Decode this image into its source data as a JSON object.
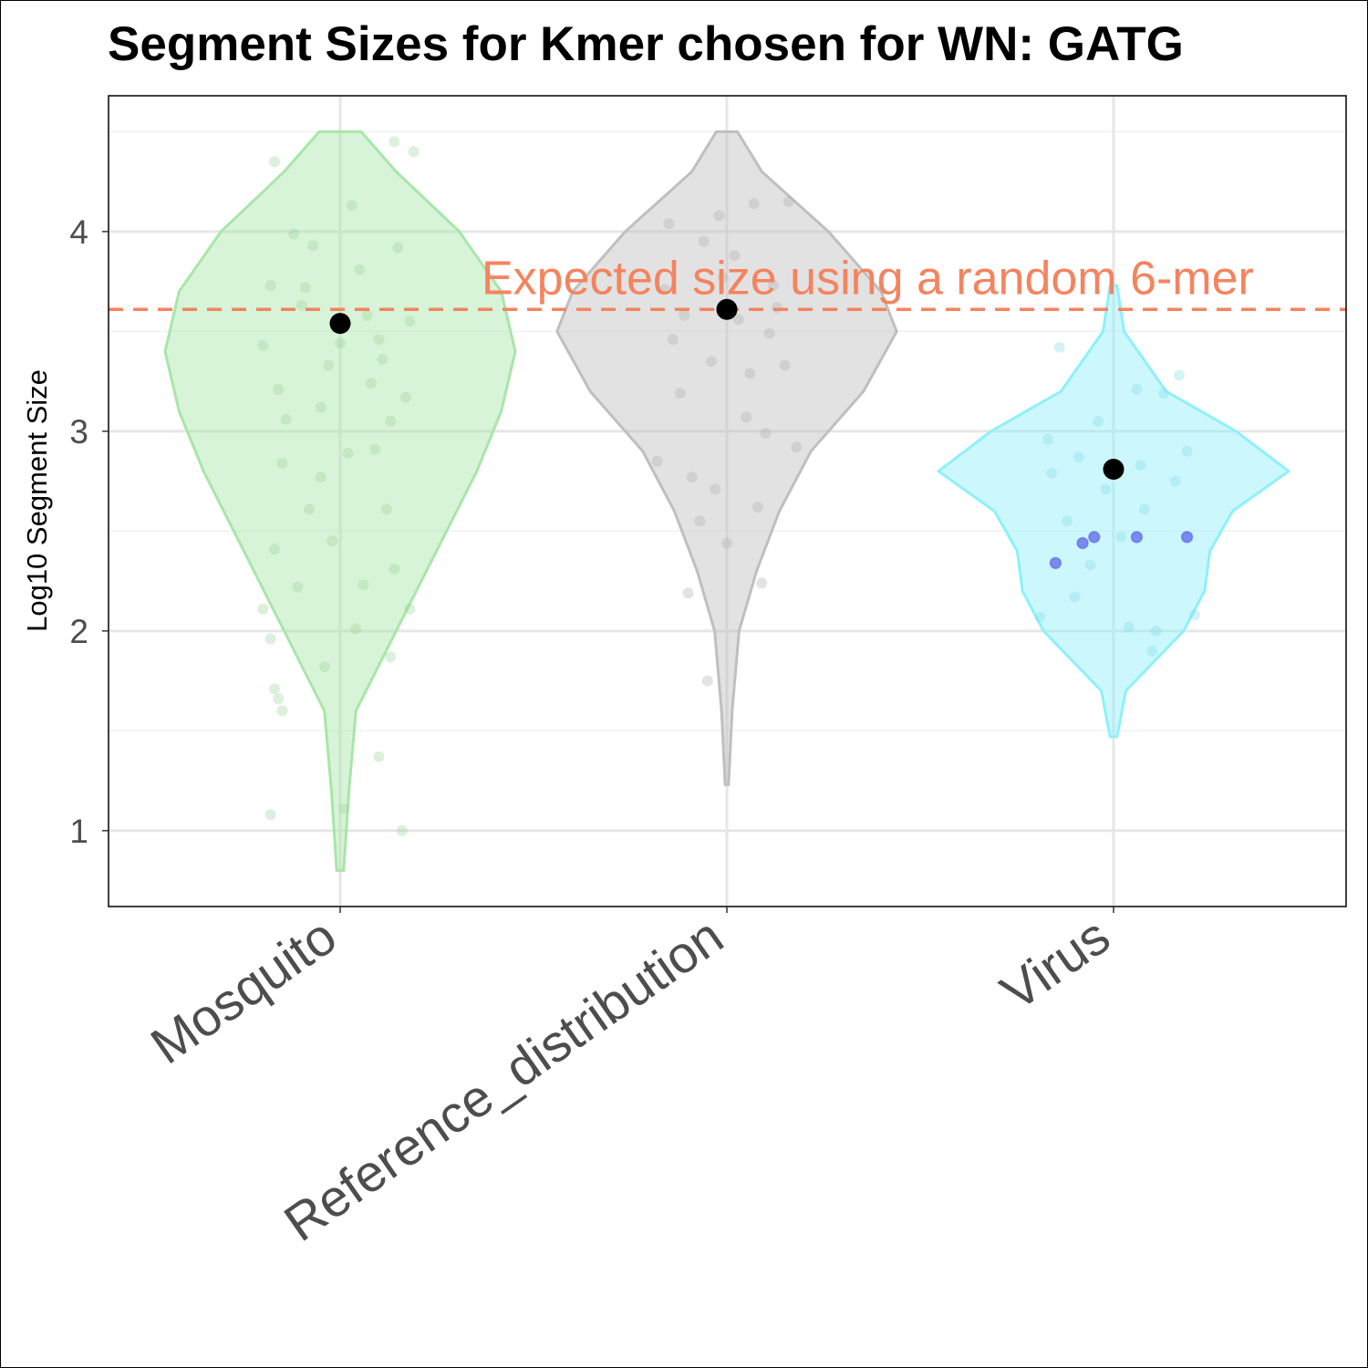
{
  "chart_data": {
    "type": "violin",
    "title": "Segment Sizes for Kmer chosen for WN: GATG",
    "xlabel": "",
    "ylabel": "Log10 Segment Size",
    "ylim": [
      0.62,
      4.68
    ],
    "yticks": [
      1,
      2,
      3,
      4
    ],
    "grid": true,
    "legend": "none",
    "categories": [
      "Mosquito",
      "Reference_distribution",
      "Virus"
    ],
    "reference_line": {
      "value": 3.61,
      "label": "Expected size using a random 6-mer",
      "color": "#f4845f",
      "style": "dashed"
    },
    "colors": {
      "Mosquito": "#a8e6a8",
      "Reference_distribution": "#bfbfbf",
      "Virus": "#8ef0fb",
      "highlight": "#3f3fe8",
      "median": "#000000"
    },
    "series": [
      {
        "category": "Mosquito",
        "median": 3.54,
        "range": [
          0.8,
          4.5
        ],
        "density_profile": [
          [
            0.8,
            0.02
          ],
          [
            1.2,
            0.05
          ],
          [
            1.6,
            0.09
          ],
          [
            2.0,
            0.32
          ],
          [
            2.4,
            0.55
          ],
          [
            2.8,
            0.78
          ],
          [
            3.1,
            0.92
          ],
          [
            3.4,
            1.0
          ],
          [
            3.7,
            0.92
          ],
          [
            4.0,
            0.68
          ],
          [
            4.3,
            0.32
          ],
          [
            4.5,
            0.12
          ]
        ],
        "points": [
          [
            -0.17,
            4.35
          ],
          [
            0.14,
            4.45
          ],
          [
            0.19,
            4.4
          ],
          [
            -0.18,
            1.08
          ],
          [
            0.01,
            1.11
          ],
          [
            0.1,
            1.37
          ],
          [
            0.16,
            1.0
          ],
          [
            -0.15,
            1.6
          ],
          [
            -0.17,
            1.71
          ],
          [
            -0.16,
            1.66
          ],
          [
            -0.18,
            1.96
          ],
          [
            -0.2,
            2.11
          ],
          [
            0.13,
            1.87
          ],
          [
            0.18,
            2.11
          ],
          [
            -0.17,
            2.41
          ],
          [
            -0.04,
            1.82
          ],
          [
            0.06,
            2.23
          ],
          [
            0.14,
            2.31
          ],
          [
            -0.2,
            3.43
          ],
          [
            -0.16,
            3.21
          ],
          [
            0.12,
            2.61
          ],
          [
            -0.05,
            2.77
          ],
          [
            0.09,
            2.91
          ],
          [
            0.17,
            3.17
          ],
          [
            -0.1,
            3.63
          ],
          [
            0.05,
            3.81
          ],
          [
            0.15,
            3.92
          ],
          [
            -0.12,
            3.99
          ],
          [
            0.03,
            4.13
          ],
          [
            -0.14,
            3.06
          ],
          [
            -0.08,
            2.61
          ],
          [
            0.11,
            3.36
          ],
          [
            -0.03,
            3.33
          ],
          [
            0.07,
            3.58
          ],
          [
            -0.18,
            3.73
          ],
          [
            0.1,
            3.46
          ],
          [
            -0.05,
            3.12
          ],
          [
            0.02,
            2.89
          ],
          [
            -0.11,
            2.22
          ],
          [
            0.04,
            2.01
          ],
          [
            -0.07,
            3.93
          ],
          [
            0.18,
            3.55
          ],
          [
            -0.15,
            2.84
          ],
          [
            0.08,
            3.24
          ],
          [
            -0.02,
            2.45
          ],
          [
            0.13,
            3.05
          ],
          [
            -0.09,
            3.72
          ],
          [
            0.0,
            3.44
          ]
        ]
      },
      {
        "category": "Reference_distribution",
        "median": 3.61,
        "range": [
          1.23,
          4.5
        ],
        "density_profile": [
          [
            1.23,
            0.01
          ],
          [
            1.6,
            0.03
          ],
          [
            2.0,
            0.07
          ],
          [
            2.3,
            0.17
          ],
          [
            2.6,
            0.3
          ],
          [
            2.9,
            0.48
          ],
          [
            3.2,
            0.78
          ],
          [
            3.5,
            0.97
          ],
          [
            3.7,
            0.88
          ],
          [
            4.0,
            0.58
          ],
          [
            4.3,
            0.2
          ],
          [
            4.5,
            0.06
          ]
        ],
        "points": [
          [
            -0.05,
            1.75
          ],
          [
            -0.1,
            2.19
          ],
          [
            0.09,
            2.24
          ],
          [
            0.0,
            2.44
          ],
          [
            -0.14,
            3.46
          ],
          [
            0.12,
            3.73
          ],
          [
            0.07,
            4.14
          ],
          [
            -0.02,
            4.08
          ],
          [
            -0.18,
            2.85
          ],
          [
            0.18,
            2.92
          ],
          [
            -0.09,
            2.77
          ],
          [
            0.05,
            3.07
          ],
          [
            -0.04,
            3.35
          ],
          [
            0.11,
            3.49
          ],
          [
            0.15,
            3.33
          ],
          [
            -0.16,
            3.71
          ],
          [
            -0.06,
            3.95
          ],
          [
            0.03,
            3.56
          ],
          [
            -0.12,
            3.19
          ],
          [
            0.08,
            2.62
          ],
          [
            -0.07,
            2.55
          ],
          [
            0.13,
            3.62
          ],
          [
            -0.01,
            3.77
          ],
          [
            0.06,
            3.29
          ],
          [
            -0.15,
            4.04
          ],
          [
            0.1,
            2.99
          ],
          [
            -0.03,
            2.71
          ],
          [
            0.02,
            3.88
          ],
          [
            0.16,
            4.15
          ],
          [
            -0.11,
            3.58
          ]
        ]
      },
      {
        "category": "Virus",
        "median": 2.81,
        "range": [
          1.47,
          3.73
        ],
        "density_profile": [
          [
            1.47,
            0.02
          ],
          [
            1.7,
            0.07
          ],
          [
            2.0,
            0.4
          ],
          [
            2.2,
            0.52
          ],
          [
            2.4,
            0.55
          ],
          [
            2.6,
            0.68
          ],
          [
            2.8,
            1.0
          ],
          [
            3.0,
            0.7
          ],
          [
            3.2,
            0.3
          ],
          [
            3.5,
            0.06
          ],
          [
            3.73,
            0.02
          ]
        ],
        "points": [
          [
            -0.14,
            3.42
          ],
          [
            0.06,
            3.21
          ],
          [
            -0.09,
            2.87
          ],
          [
            0.16,
            2.75
          ],
          [
            -0.19,
            2.07
          ],
          [
            0.11,
            2.0
          ],
          [
            0.21,
            2.08
          ],
          [
            -0.1,
            2.17
          ],
          [
            0.02,
            2.47
          ],
          [
            -0.04,
            3.05
          ],
          [
            0.08,
            2.61
          ],
          [
            -0.16,
            2.79
          ],
          [
            0.19,
            2.9
          ],
          [
            -0.06,
            2.33
          ],
          [
            0.13,
            3.19
          ],
          [
            -0.12,
            2.55
          ],
          [
            0.04,
            2.02
          ],
          [
            0.17,
            3.28
          ],
          [
            -0.02,
            2.71
          ],
          [
            0.1,
            1.9
          ],
          [
            -0.17,
            2.96
          ],
          [
            0.07,
            2.83
          ]
        ],
        "highlighted_points": [
          [
            -0.15,
            2.34
          ],
          [
            -0.08,
            2.44
          ],
          [
            -0.05,
            2.47
          ],
          [
            0.06,
            2.47
          ],
          [
            0.19,
            2.47
          ]
        ]
      }
    ]
  }
}
